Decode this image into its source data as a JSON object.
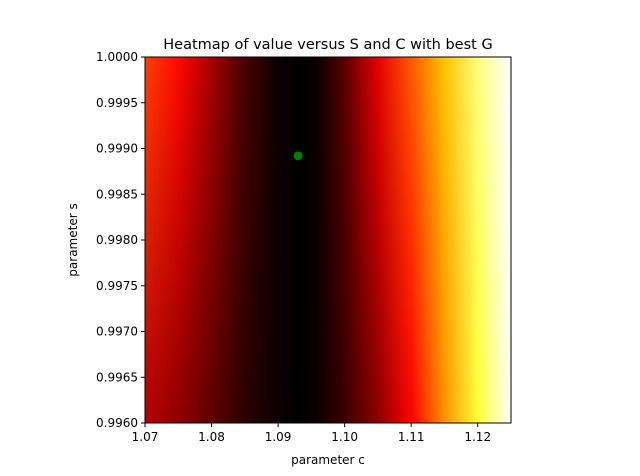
{
  "chart_data": {
    "type": "heatmap",
    "title": "Heatmap of value versus S and C with best G",
    "xlabel": "parameter c",
    "ylabel": "parameter s",
    "xlim": [
      1.07,
      1.125
    ],
    "ylim": [
      0.996,
      1.0
    ],
    "xticks": [
      1.07,
      1.08,
      1.09,
      1.1,
      1.11,
      1.12
    ],
    "xtick_labels": [
      "1.07",
      "1.08",
      "1.09",
      "1.10",
      "1.11",
      "1.12"
    ],
    "yticks": [
      0.996,
      0.9965,
      0.997,
      0.9975,
      0.998,
      0.9985,
      0.999,
      0.9995,
      1.0
    ],
    "ytick_labels": [
      "0.9960",
      "0.9965",
      "0.9970",
      "0.9975",
      "0.9980",
      "0.9985",
      "0.9990",
      "0.9995",
      "1.0000"
    ],
    "colormap": "hot",
    "best_point": {
      "c": 1.093,
      "s": 0.99892,
      "color": "#008000"
    },
    "heat_profile": {
      "c": [
        1.07,
        1.075,
        1.08,
        1.085,
        1.09,
        1.093,
        1.096,
        1.1,
        1.105,
        1.11,
        1.115,
        1.12,
        1.125
      ],
      "level_top": [
        0.46,
        0.38,
        0.24,
        0.1,
        0.02,
        0.0,
        0.02,
        0.13,
        0.33,
        0.5,
        0.66,
        0.87,
        1.0
      ],
      "level_bottom": [
        0.26,
        0.2,
        0.13,
        0.06,
        0.02,
        0.0,
        0.02,
        0.08,
        0.2,
        0.36,
        0.58,
        0.8,
        1.0
      ]
    },
    "grid": false,
    "legend": "none"
  }
}
